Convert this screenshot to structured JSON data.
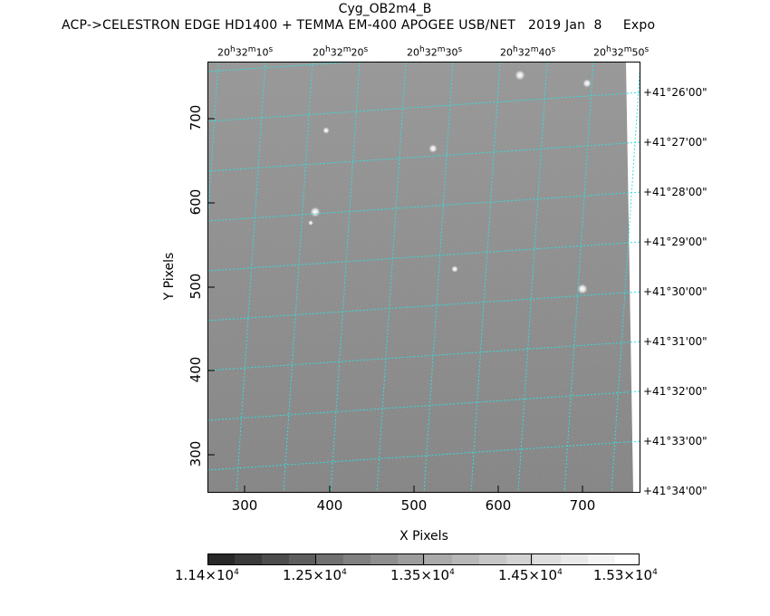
{
  "header": {
    "object_name": "Cyg_OB2m4_B",
    "info_line": "ACP->CELESTRON EDGE HD1400 + TEMMA EM-400 APOGEE USB/NET   2019 Jan  8     Expo"
  },
  "axes": {
    "xlabel": "X Pixels",
    "ylabel": "Y Pixels",
    "x_ticks": [
      "300",
      "400",
      "500",
      "600",
      "700"
    ],
    "y_ticks": [
      "300",
      "400",
      "500",
      "600",
      "700"
    ]
  },
  "ra_ticks": [
    {
      "h": "20",
      "m": "32",
      "s": "10"
    },
    {
      "h": "20",
      "m": "32",
      "s": "20"
    },
    {
      "h": "20",
      "m": "32",
      "s": "30"
    },
    {
      "h": "20",
      "m": "32",
      "s": "40"
    },
    {
      "h": "20",
      "m": "32",
      "s": "50"
    }
  ],
  "dec_ticks": [
    "+41°26'00\"",
    "+41°27'00\"",
    "+41°28'00\"",
    "+41°29'00\"",
    "+41°30'00\"",
    "+41°31'00\"",
    "+41°32'00\"",
    "+41°33'00\"",
    "+41°34'00\""
  ],
  "colorbar": {
    "labels": [
      {
        "mantissa": "1.14×10",
        "exp": "4"
      },
      {
        "mantissa": "1.25×10",
        "exp": "4"
      },
      {
        "mantissa": "1.35×10",
        "exp": "4"
      },
      {
        "mantissa": "1.45×10",
        "exp": "4"
      },
      {
        "mantissa": "1.53×10",
        "exp": "4"
      }
    ]
  },
  "colors": {
    "grid": "#33dddd",
    "image_bg": "#8a8a8a"
  }
}
